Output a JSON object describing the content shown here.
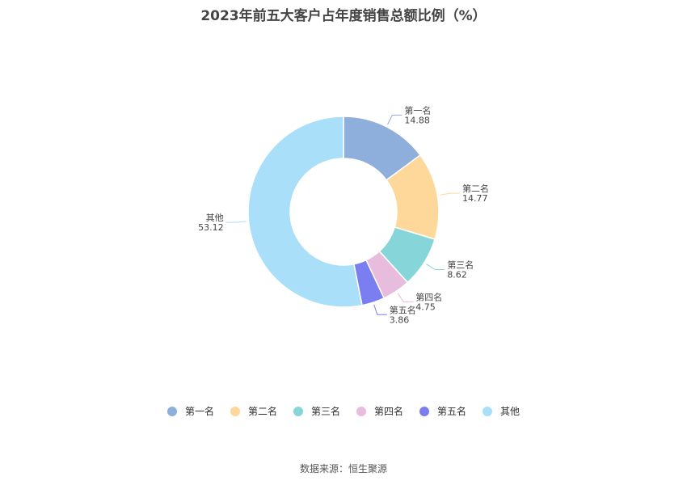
{
  "chart_data": {
    "type": "pie",
    "title": "2023年前五大客户占年度销售总额比例（%）",
    "donut": true,
    "categories": [
      "第一名",
      "第二名",
      "第三名",
      "第四名",
      "第五名",
      "其他"
    ],
    "values": [
      14.88,
      14.77,
      8.62,
      4.75,
      3.86,
      53.12
    ],
    "colors": [
      "#8eaedb",
      "#fdd89a",
      "#86d6d9",
      "#e8bcdc",
      "#7b7ef0",
      "#a9dff8"
    ],
    "legend": "bottom-center"
  },
  "source": "数据来源：恒生聚源"
}
